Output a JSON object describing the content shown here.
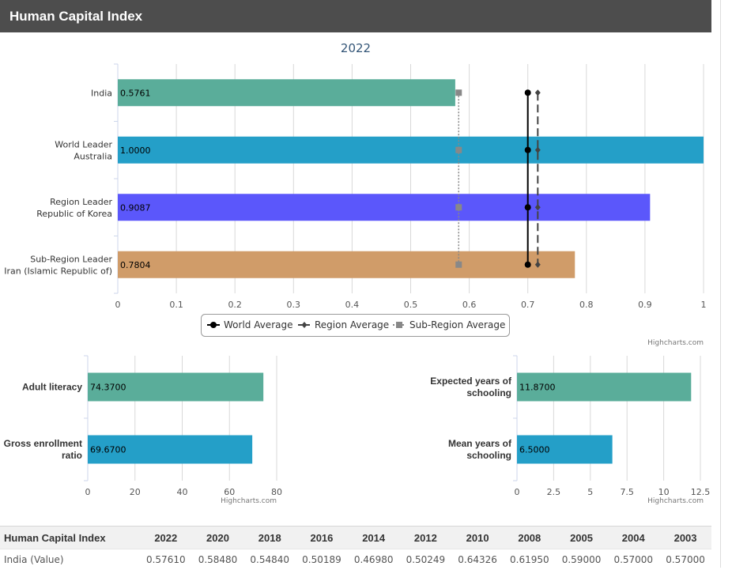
{
  "header": {
    "title": "Human Capital Index"
  },
  "chart_data": [
    {
      "type": "bar",
      "orientation": "horizontal",
      "title": "2022",
      "categories": [
        [
          "India"
        ],
        [
          "World Leader",
          "Australia"
        ],
        [
          "Region Leader",
          "Republic of Korea"
        ],
        [
          "Sub-Region Leader",
          "Iran (Islamic Republic of)"
        ]
      ],
      "values": [
        0.5761,
        1.0,
        0.9087,
        0.7804
      ],
      "value_labels": [
        "0.5761",
        "1.0000",
        "0.9087",
        "0.7804"
      ],
      "bar_colors": [
        "#5aad9a",
        "#249fc8",
        "#5b57fb",
        "#d09c69"
      ],
      "xlim": [
        0,
        1
      ],
      "x_ticks": [
        0,
        0.1,
        0.2,
        0.3,
        0.4,
        0.5,
        0.6,
        0.7,
        0.8,
        0.9,
        1
      ],
      "x_tick_labels": [
        "0",
        "0.1",
        "0.2",
        "0.3",
        "0.4",
        "0.5",
        "0.6",
        "0.7",
        "0.8",
        "0.9",
        "1"
      ],
      "reference_lines": [
        {
          "name": "World Average",
          "value": 0.7,
          "color": "#000000",
          "style": "solid",
          "marker": "circle"
        },
        {
          "name": "Region Average",
          "value": 0.717,
          "color": "#444444",
          "style": "dashed",
          "marker": "diamond"
        },
        {
          "name": "Sub-Region Average",
          "value": 0.582,
          "color": "#888888",
          "style": "dotted",
          "marker": "square"
        }
      ],
      "legend_position": "bottom-center",
      "grid": true,
      "credit": "Highcharts.com"
    },
    {
      "type": "bar",
      "orientation": "horizontal",
      "categories": [
        [
          "Adult literacy"
        ],
        [
          "Gross enrollment",
          "ratio"
        ]
      ],
      "values": [
        74.37,
        69.67
      ],
      "value_labels": [
        "74.3700",
        "69.6700"
      ],
      "bar_colors": [
        "#5aad9a",
        "#249fc8"
      ],
      "xlim": [
        0,
        80
      ],
      "x_ticks": [
        0,
        20,
        40,
        60,
        80
      ],
      "x_tick_labels": [
        "0",
        "20",
        "40",
        "60",
        "80"
      ],
      "grid": true,
      "credit": "Highcharts.com"
    },
    {
      "type": "bar",
      "orientation": "horizontal",
      "categories": [
        [
          "Expected years of",
          "schooling"
        ],
        [
          "Mean years of",
          "schooling"
        ]
      ],
      "values": [
        11.87,
        6.5
      ],
      "value_labels": [
        "11.8700",
        "6.5000"
      ],
      "bar_colors": [
        "#5aad9a",
        "#249fc8"
      ],
      "xlim": [
        0,
        12.5
      ],
      "x_ticks": [
        0,
        2.5,
        5,
        7.5,
        10,
        12.5
      ],
      "x_tick_labels": [
        "0",
        "2.5",
        "5",
        "7.5",
        "10",
        "12.5"
      ],
      "grid": true,
      "credit": "Highcharts.com"
    }
  ],
  "table": {
    "headers": [
      "Human Capital Index",
      "2022",
      "2020",
      "2018",
      "2016",
      "2014",
      "2012",
      "2010",
      "2008",
      "2005",
      "2004",
      "2003"
    ],
    "rows": [
      [
        "India (Value)",
        "0.57610",
        "0.58480",
        "0.54840",
        "0.50189",
        "0.46980",
        "0.50249",
        "0.64326",
        "0.61950",
        "0.59000",
        "0.57000",
        "0.57000"
      ]
    ]
  }
}
